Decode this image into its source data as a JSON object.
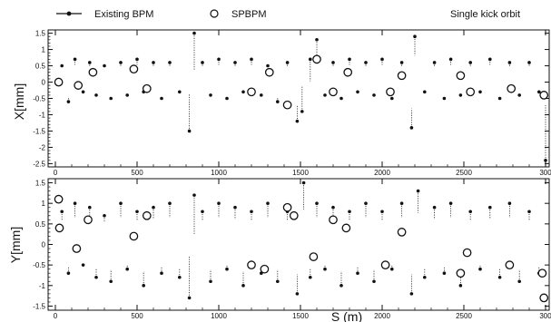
{
  "chart_data": [
    {
      "type": "scatter",
      "title": "Single kick orbit",
      "xlabel": "",
      "ylabel": "X[mm]",
      "xlim": [
        0,
        3000
      ],
      "ylim": [
        -2.6,
        1.6
      ],
      "grid": false,
      "xticks": [
        "0",
        "500",
        "1000",
        "1500",
        "2000",
        "2500",
        "300"
      ],
      "yticks": [
        "1.5",
        "1",
        "0.5",
        "0",
        "-0.5",
        "-1",
        "-1.5",
        "-2",
        "-2.5"
      ],
      "legend": {
        "placement": "top-left",
        "entries": [
          "Existing BPM",
          "SPBPM"
        ]
      },
      "series": [
        {
          "name": "Existing BPM",
          "marker": "filled-dot-with-dotted-stem",
          "x": [
            40,
            80,
            120,
            170,
            210,
            250,
            300,
            340,
            400,
            440,
            500,
            540,
            600,
            650,
            700,
            760,
            820,
            850,
            900,
            950,
            1000,
            1050,
            1100,
            1150,
            1200,
            1260,
            1300,
            1360,
            1420,
            1480,
            1510,
            1560,
            1600,
            1650,
            1700,
            1750,
            1800,
            1850,
            1900,
            1950,
            2000,
            2060,
            2120,
            2180,
            2200,
            2260,
            2320,
            2380,
            2420,
            2480,
            2540,
            2600,
            2660,
            2720,
            2780,
            2840,
            2900,
            2960,
            3000
          ],
          "y": [
            0.5,
            -0.6,
            0.7,
            -0.3,
            0.6,
            -0.4,
            0.5,
            -0.5,
            0.6,
            -0.4,
            0.7,
            -0.3,
            0.6,
            -0.5,
            0.6,
            -0.3,
            -1.5,
            1.5,
            0.6,
            -0.4,
            0.7,
            -0.5,
            0.6,
            -0.3,
            0.7,
            -0.4,
            0.5,
            -0.6,
            0.6,
            -1.2,
            -0.9,
            0.7,
            1.3,
            -0.4,
            0.6,
            -0.5,
            0.7,
            -0.3,
            0.6,
            -0.4,
            0.7,
            -0.5,
            0.6,
            -1.4,
            1.4,
            -0.3,
            0.6,
            -0.5,
            0.7,
            -0.4,
            0.6,
            -0.3,
            0.7,
            -0.5,
            0.6,
            -0.4,
            0.6,
            -0.3,
            -2.4
          ]
        },
        {
          "name": "SPBPM",
          "marker": "open-circle",
          "x": [
            20,
            140,
            230,
            480,
            560,
            1200,
            1310,
            1420,
            1600,
            1700,
            1790,
            2050,
            2120,
            2480,
            2540,
            2790,
            2990
          ],
          "y": [
            0.0,
            -0.1,
            0.3,
            0.4,
            -0.2,
            -0.3,
            0.3,
            -0.7,
            0.7,
            -0.3,
            0.3,
            -0.3,
            0.2,
            0.2,
            -0.3,
            -0.2,
            -0.4
          ]
        }
      ]
    },
    {
      "type": "scatter",
      "title": "",
      "xlabel": "S (m)",
      "ylabel": "Y[mm]",
      "xlim": [
        0,
        3000
      ],
      "ylim": [
        -1.6,
        1.6
      ],
      "grid": false,
      "xticks": [
        "0",
        "500",
        "1000",
        "1500",
        "2000",
        "2500",
        "300"
      ],
      "yticks": [
        "1.5",
        "1",
        "0.5",
        "0",
        "-0.5",
        "-1",
        "-1.5"
      ],
      "series": [
        {
          "name": "Existing BPM",
          "marker": "filled-dot-with-dotted-stem",
          "x": [
            40,
            80,
            120,
            170,
            210,
            250,
            300,
            340,
            400,
            440,
            500,
            540,
            600,
            650,
            700,
            760,
            820,
            850,
            900,
            950,
            1000,
            1050,
            1100,
            1150,
            1200,
            1260,
            1300,
            1360,
            1420,
            1480,
            1520,
            1560,
            1600,
            1650,
            1700,
            1750,
            1800,
            1850,
            1900,
            1950,
            2000,
            2060,
            2120,
            2180,
            2220,
            2260,
            2320,
            2380,
            2420,
            2480,
            2540,
            2600,
            2660,
            2720,
            2780,
            2840,
            2900,
            2960
          ],
          "y": [
            0.8,
            -0.7,
            1.0,
            -0.5,
            0.9,
            -0.8,
            0.7,
            -0.9,
            1.0,
            -0.6,
            0.8,
            -1.0,
            0.9,
            -0.7,
            1.0,
            -0.8,
            -1.3,
            1.2,
            0.8,
            -0.9,
            1.0,
            -0.6,
            0.9,
            -1.0,
            0.8,
            -0.7,
            1.0,
            -0.9,
            0.8,
            -1.2,
            1.5,
            -0.8,
            1.0,
            -0.6,
            0.9,
            -1.0,
            0.8,
            -0.7,
            1.0,
            -0.9,
            0.8,
            -0.6,
            1.0,
            -1.2,
            1.3,
            -0.8,
            0.9,
            -0.7,
            1.0,
            -1.0,
            0.8,
            -0.6,
            0.9,
            -0.8,
            1.0,
            -0.9,
            0.8,
            -0.7
          ]
        },
        {
          "name": "SPBPM",
          "marker": "open-circle",
          "x": [
            20,
            25,
            130,
            200,
            480,
            560,
            1200,
            1280,
            1420,
            1460,
            1580,
            1700,
            1780,
            2020,
            2120,
            2480,
            2520,
            2780,
            2980,
            2990
          ],
          "y": [
            1.1,
            0.4,
            -0.1,
            0.6,
            0.2,
            0.7,
            -0.5,
            -0.6,
            0.9,
            0.7,
            -0.3,
            0.6,
            0.4,
            -0.5,
            0.3,
            -0.7,
            -0.2,
            -0.5,
            -0.7,
            -1.3
          ]
        }
      ]
    }
  ]
}
